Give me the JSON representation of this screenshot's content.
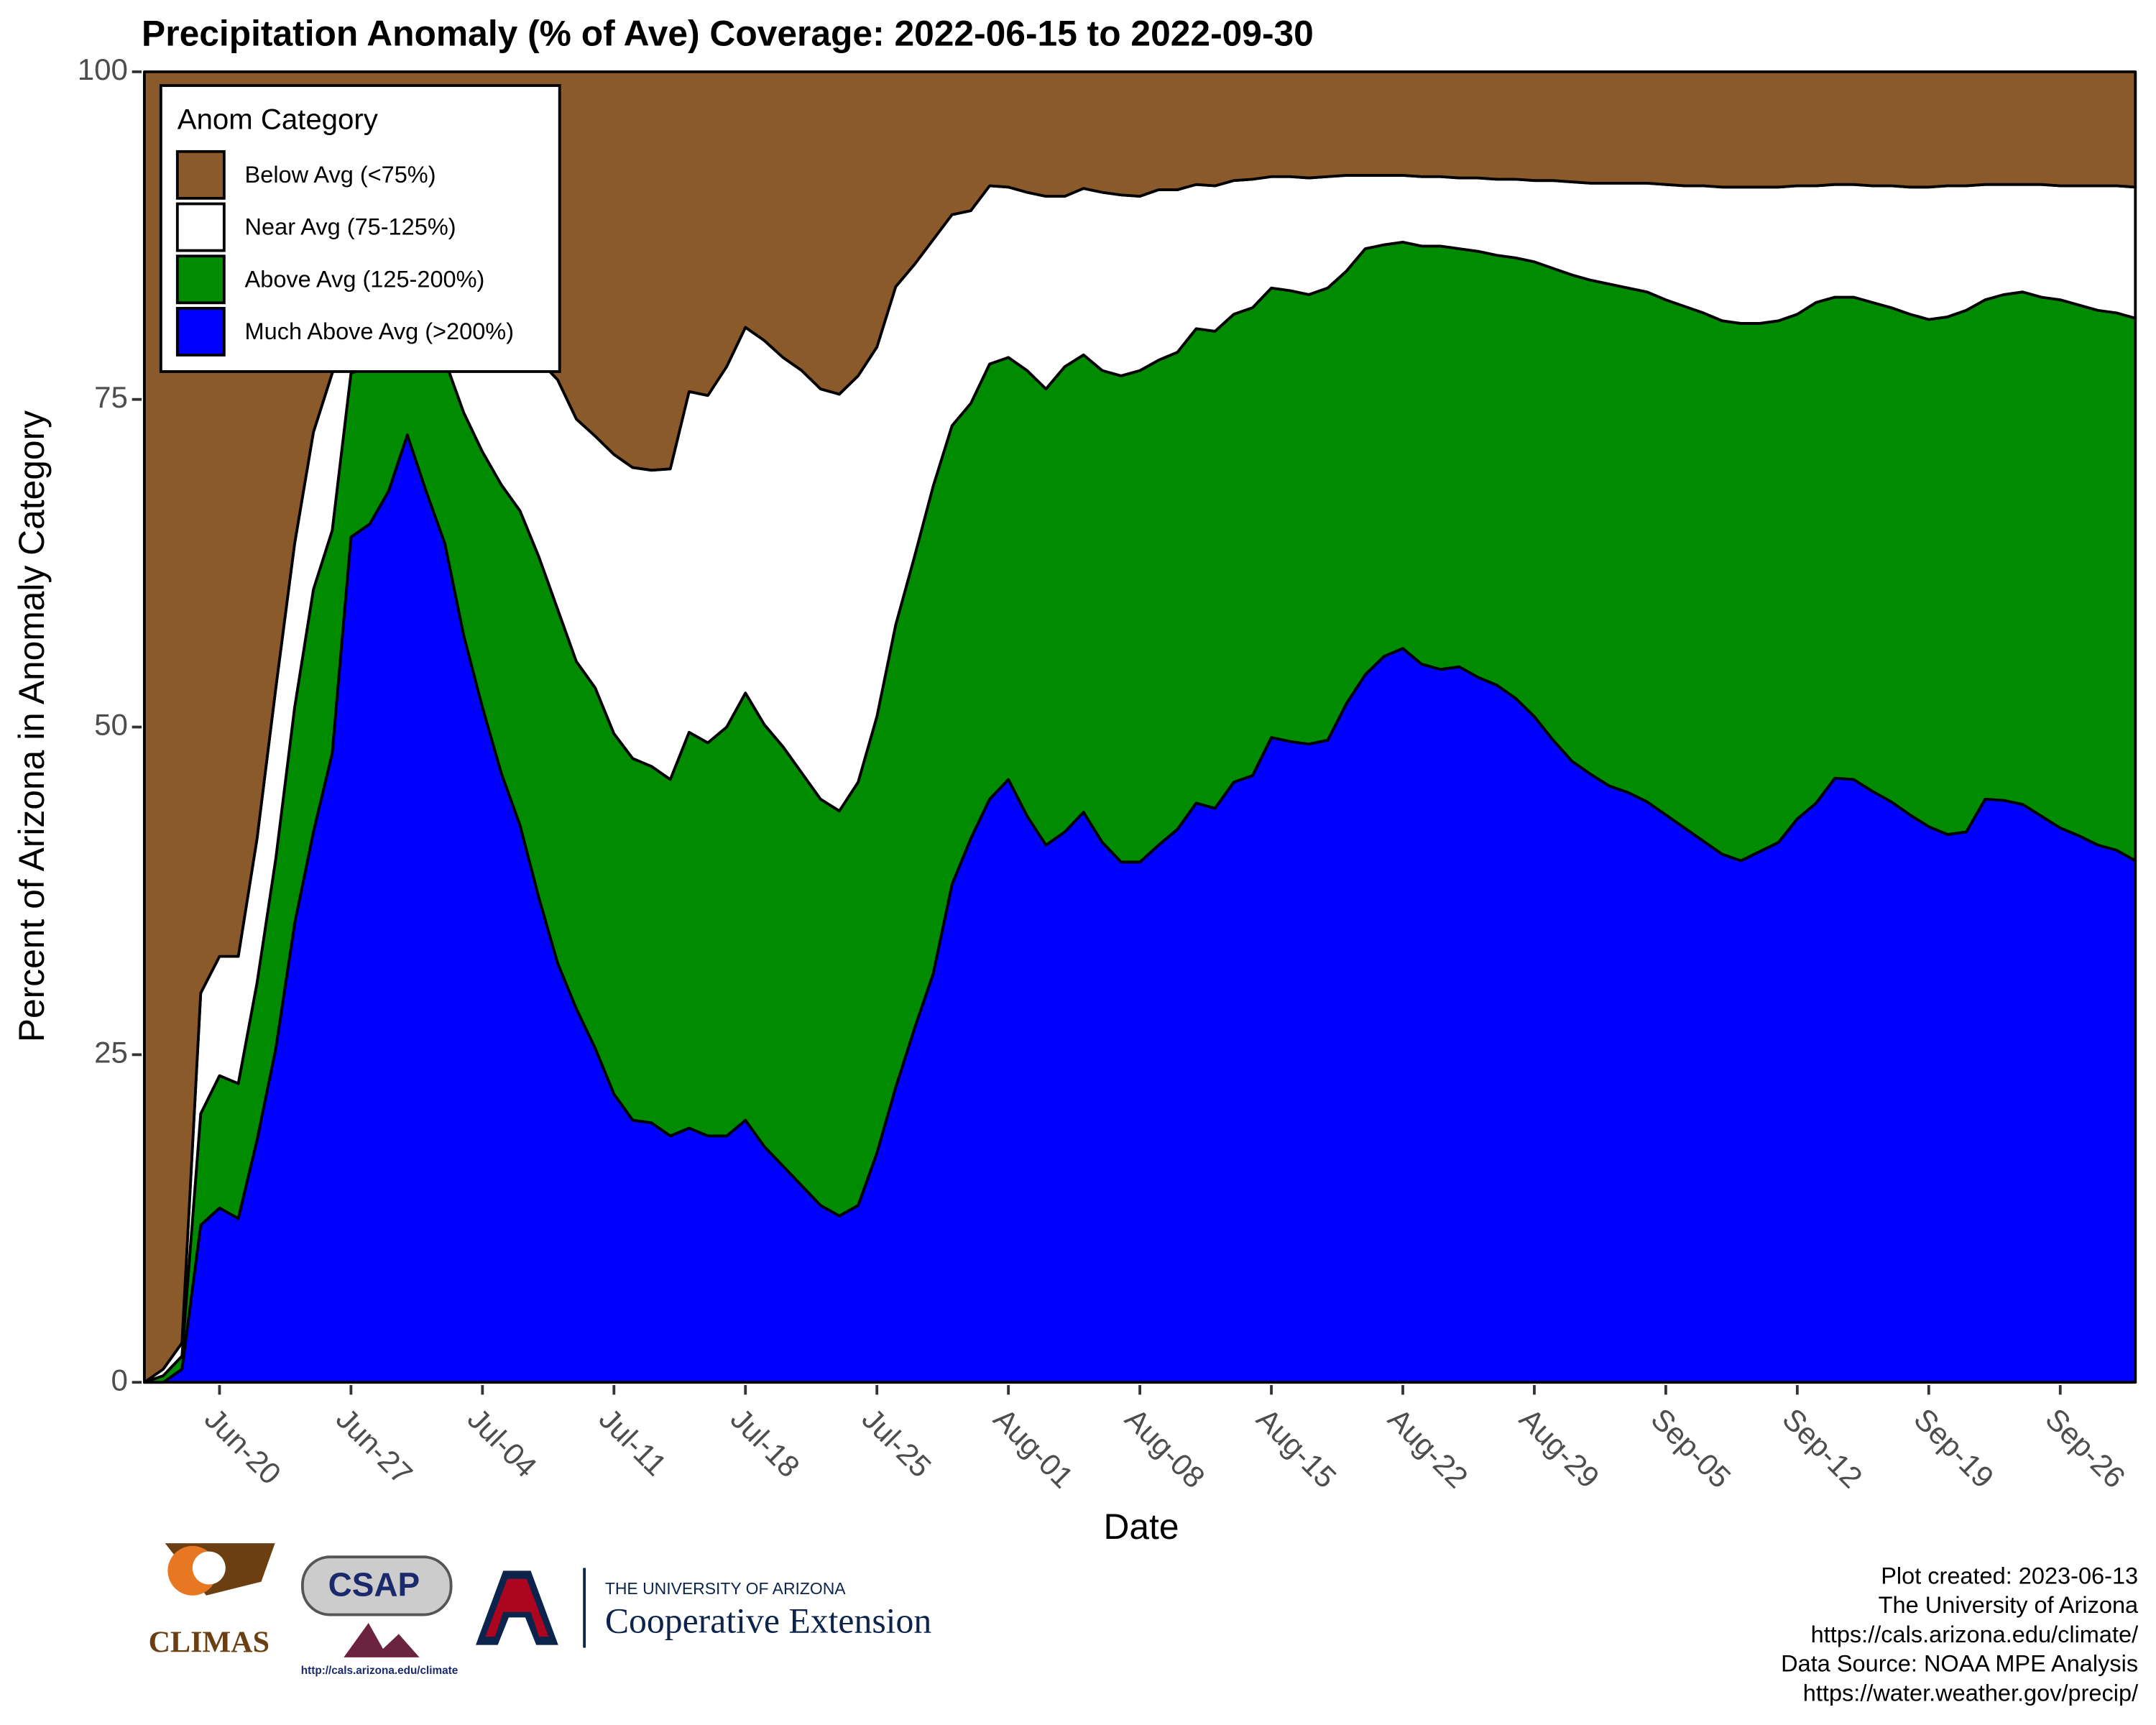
{
  "chart_data": {
    "type": "stacked-area",
    "title": "Precipitation Anomaly (% of Ave) Coverage: 2022-06-15 to 2022-09-30",
    "x_label": "Date",
    "y_label": "Percent of Arizona in Anomaly Category",
    "legend_title": "Anom Category",
    "legend_position": "top-left",
    "x": [
      "2022-06-16",
      "2022-06-17",
      "2022-06-18",
      "2022-06-19",
      "2022-06-20",
      "2022-06-21",
      "2022-06-22",
      "2022-06-23",
      "2022-06-24",
      "2022-06-25",
      "2022-06-26",
      "2022-06-27",
      "2022-06-28",
      "2022-06-29",
      "2022-06-30",
      "2022-07-01",
      "2022-07-02",
      "2022-07-03",
      "2022-07-04",
      "2022-07-05",
      "2022-07-06",
      "2022-07-07",
      "2022-07-08",
      "2022-07-09",
      "2022-07-10",
      "2022-07-11",
      "2022-07-12",
      "2022-07-13",
      "2022-07-14",
      "2022-07-15",
      "2022-07-16",
      "2022-07-17",
      "2022-07-18",
      "2022-07-19",
      "2022-07-20",
      "2022-07-21",
      "2022-07-22",
      "2022-07-23",
      "2022-07-24",
      "2022-07-25",
      "2022-07-26",
      "2022-07-27",
      "2022-07-28",
      "2022-07-29",
      "2022-07-30",
      "2022-07-31",
      "2022-08-01",
      "2022-08-02",
      "2022-08-03",
      "2022-08-04",
      "2022-08-05",
      "2022-08-06",
      "2022-08-07",
      "2022-08-08",
      "2022-08-09",
      "2022-08-10",
      "2022-08-11",
      "2022-08-12",
      "2022-08-13",
      "2022-08-14",
      "2022-08-15",
      "2022-08-16",
      "2022-08-17",
      "2022-08-18",
      "2022-08-19",
      "2022-08-20",
      "2022-08-21",
      "2022-08-22",
      "2022-08-23",
      "2022-08-24",
      "2022-08-25",
      "2022-08-26",
      "2022-08-27",
      "2022-08-28",
      "2022-08-29",
      "2022-08-30",
      "2022-08-31",
      "2022-09-01",
      "2022-09-02",
      "2022-09-03",
      "2022-09-04",
      "2022-09-05",
      "2022-09-06",
      "2022-09-07",
      "2022-09-08",
      "2022-09-09",
      "2022-09-10",
      "2022-09-11",
      "2022-09-12",
      "2022-09-13",
      "2022-09-14",
      "2022-09-15",
      "2022-09-16",
      "2022-09-17",
      "2022-09-18",
      "2022-09-19",
      "2022-09-20",
      "2022-09-21",
      "2022-09-22",
      "2022-09-23",
      "2022-09-24",
      "2022-09-25",
      "2022-09-26",
      "2022-09-27",
      "2022-09-28",
      "2022-09-29",
      "2022-09-30"
    ],
    "series": [
      {
        "name": "Below Avg (<75%)",
        "color": "#8b5a2b",
        "values": [
          100,
          99,
          97,
          70.3,
          67.5,
          67.5,
          58.5,
          47,
          36,
          27.5,
          23,
          19,
          16,
          15,
          14,
          15,
          16,
          17,
          18,
          20,
          21,
          22,
          23.5,
          26.5,
          27.8,
          29.2,
          30.2,
          30.4,
          30.3,
          24.4,
          24.7,
          22.5,
          19.5,
          20.5,
          21.8,
          22.8,
          24.2,
          24.6,
          23.2,
          21,
          16.4,
          14.7,
          12.8,
          10.9,
          10.6,
          8.7,
          8.8,
          9.2,
          9.5,
          9.5,
          8.9,
          9.2,
          9.4,
          9.5,
          9,
          9,
          8.6,
          8.7,
          8.3,
          8.2,
          8,
          8,
          8.1,
          8,
          7.9,
          7.9,
          7.9,
          7.9,
          8,
          8,
          8.1,
          8.1,
          8.2,
          8.2,
          8.3,
          8.3,
          8.4,
          8.5,
          8.5,
          8.5,
          8.5,
          8.6,
          8.7,
          8.7,
          8.8,
          8.8,
          8.8,
          8.8,
          8.7,
          8.7,
          8.6,
          8.6,
          8.7,
          8.7,
          8.8,
          8.8,
          8.7,
          8.7,
          8.6,
          8.6,
          8.6,
          8.6,
          8.7,
          8.7,
          8.7,
          8.7,
          8.8
        ]
      },
      {
        "name": "Near Avg (75-125%)",
        "color": "#ffffff",
        "values": [
          0,
          0.5,
          1,
          9.2,
          9.1,
          9.7,
          11,
          13,
          12.5,
          12,
          12,
          4,
          6.5,
          7,
          7,
          6,
          6,
          9,
          11,
          11.5,
          12.5,
          15,
          17.5,
          18.5,
          19.2,
          21.3,
          22.2,
          22.6,
          23.7,
          26,
          26.5,
          27.5,
          27.9,
          29.3,
          29.7,
          30.7,
          31.3,
          31.8,
          31,
          28.2,
          25.8,
          22.3,
          18.8,
          16.1,
          14.7,
          13.6,
          13,
          13.6,
          14.7,
          13,
          12.7,
          13.6,
          13.8,
          13.3,
          13,
          12.4,
          11,
          11.1,
          10.2,
          9.8,
          8.5,
          8.7,
          8.9,
          8.5,
          7.3,
          5.6,
          5.3,
          5.1,
          5.3,
          5.3,
          5.4,
          5.6,
          5.8,
          6,
          6.2,
          6.7,
          7.1,
          7.4,
          7.7,
          8,
          8.3,
          8.8,
          9.2,
          9.7,
          10.2,
          10.4,
          10.4,
          10.2,
          9.8,
          8.9,
          8.6,
          8.6,
          8.9,
          9.3,
          9.7,
          10.1,
          10,
          9.5,
          8.8,
          8.4,
          8.2,
          8.6,
          8.7,
          9.1,
          9.5,
          9.7,
          10
        ]
      },
      {
        "name": "Above Avg (125-200%)",
        "color": "#008b00",
        "values": [
          0,
          0.5,
          1,
          8.5,
          10.1,
          10.3,
          12,
          14.5,
          16.5,
          18.5,
          17,
          12.5,
          12,
          10,
          6.7,
          11,
          14,
          17,
          19.5,
          22,
          24,
          26,
          27,
          26.5,
          27.5,
          27.5,
          27.6,
          27.2,
          27.2,
          30.2,
          30,
          31.2,
          32.6,
          32.2,
          32,
          31.5,
          31,
          30.9,
          32.3,
          33.3,
          35.3,
          36,
          37.2,
          35,
          33.2,
          33.2,
          32.2,
          34,
          34.8,
          35.5,
          34.9,
          36,
          37.1,
          37.5,
          37,
          36.4,
          36.2,
          36.4,
          35.7,
          35.7,
          34.3,
          34.4,
          34.3,
          34.5,
          33,
          32.5,
          31.4,
          31,
          31.9,
          32.3,
          31.9,
          32.5,
          32.8,
          33.6,
          34.7,
          36,
          37.1,
          37.7,
          38.3,
          38.5,
          38.9,
          39.3,
          39.8,
          40.3,
          40.7,
          41,
          40.3,
          39.8,
          38.5,
          38.2,
          36.7,
          36.8,
          37.3,
          37.7,
          38.2,
          38.7,
          39.5,
          39.8,
          38.1,
          38.6,
          39.1,
          39.6,
          40.3,
          40.5,
          40.8,
          41,
          41.4
        ]
      },
      {
        "name": "Much Above Avg (>200%)",
        "color": "#0000ff",
        "values": [
          0,
          0,
          1,
          12,
          13.3,
          12.5,
          18.5,
          25.5,
          35,
          42,
          48,
          64.5,
          65.5,
          68,
          72.3,
          68,
          64,
          57,
          51.5,
          46.5,
          42.5,
          37,
          32,
          28.5,
          25.5,
          22,
          20,
          19.8,
          18.8,
          19.4,
          18.8,
          18.8,
          20,
          18,
          16.5,
          15,
          13.5,
          12.7,
          13.5,
          17.5,
          22.5,
          27,
          31.2,
          38,
          41.5,
          44.5,
          46,
          43.2,
          41,
          42,
          43.5,
          41.2,
          39.7,
          39.7,
          41,
          42.2,
          44.2,
          43.8,
          45.8,
          46.3,
          49.2,
          48.9,
          48.7,
          49,
          51.8,
          54,
          55.4,
          56,
          54.8,
          54.4,
          54.6,
          53.8,
          53.2,
          52.2,
          50.8,
          49,
          47.4,
          46.4,
          45.5,
          45,
          44.3,
          43.3,
          42.3,
          41.3,
          40.3,
          39.8,
          40.5,
          41.2,
          43,
          44.2,
          46.1,
          46,
          45.1,
          44.3,
          43.3,
          42.4,
          41.8,
          42,
          44.5,
          44.4,
          44.1,
          43.2,
          42.3,
          41.7,
          41,
          40.6,
          39.8
        ]
      }
    ],
    "xlim": [
      "2022-06-16",
      "2022-09-30"
    ],
    "xticks": [
      {
        "value": "2022-06-20",
        "label": "Jun-20"
      },
      {
        "value": "2022-06-27",
        "label": "Jun-27"
      },
      {
        "value": "2022-07-04",
        "label": "Jul-04"
      },
      {
        "value": "2022-07-11",
        "label": "Jul-11"
      },
      {
        "value": "2022-07-18",
        "label": "Jul-18"
      },
      {
        "value": "2022-07-25",
        "label": "Jul-25"
      },
      {
        "value": "2022-08-01",
        "label": "Aug-01"
      },
      {
        "value": "2022-08-08",
        "label": "Aug-08"
      },
      {
        "value": "2022-08-15",
        "label": "Aug-15"
      },
      {
        "value": "2022-08-22",
        "label": "Aug-22"
      },
      {
        "value": "2022-08-29",
        "label": "Aug-29"
      },
      {
        "value": "2022-09-05",
        "label": "Sep-05"
      },
      {
        "value": "2022-09-12",
        "label": "Sep-12"
      },
      {
        "value": "2022-09-19",
        "label": "Sep-19"
      },
      {
        "value": "2022-09-26",
        "label": "Sep-26"
      }
    ],
    "ylim": [
      0,
      100
    ],
    "yticks": [
      0,
      25,
      50,
      75,
      100
    ],
    "grid": false
  },
  "footer": [
    "Plot created: 2023-06-13",
    "The University of Arizona",
    "https://cals.arizona.edu/climate/",
    "Data Source: NOAA MPE Analysis",
    "https://water.weather.gov/precip/"
  ],
  "logos": {
    "climas": "CLIMAS",
    "csap": "CSAP",
    "csap_url": "http://cals.arizona.edu/climate",
    "ua": "THE UNIVERSITY OF ARIZONA",
    "extension": "Cooperative Extension"
  }
}
